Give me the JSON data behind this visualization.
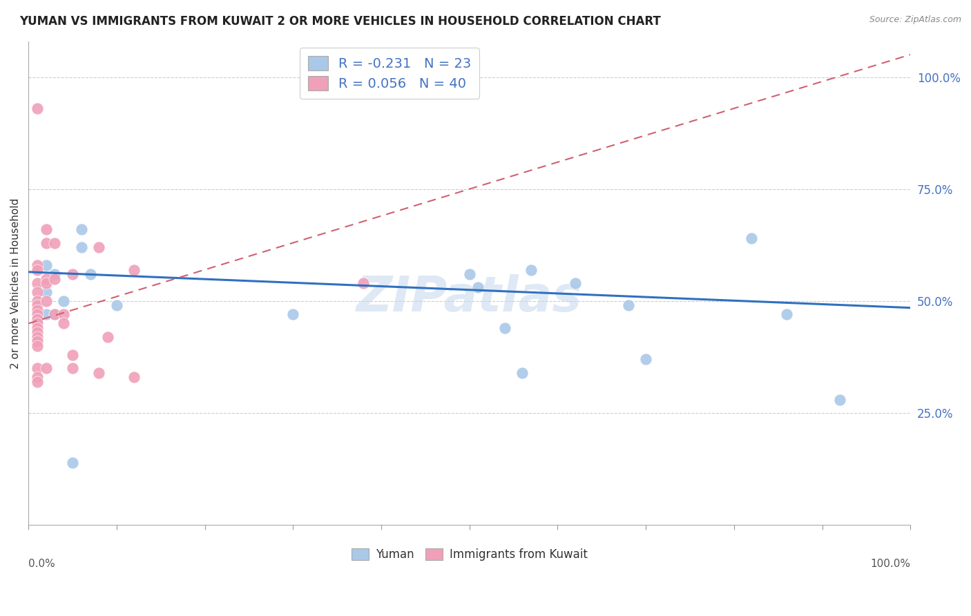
{
  "title": "YUMAN VS IMMIGRANTS FROM KUWAIT 2 OR MORE VEHICLES IN HOUSEHOLD CORRELATION CHART",
  "source": "Source: ZipAtlas.com",
  "ylabel": "2 or more Vehicles in Household",
  "blue_scatter_x": [
    0.02,
    0.03,
    0.02,
    0.04,
    0.02,
    0.03,
    0.06,
    0.06,
    0.07,
    0.1,
    0.3,
    0.5,
    0.51,
    0.54,
    0.56,
    0.57,
    0.62,
    0.68,
    0.7,
    0.82,
    0.86,
    0.92,
    0.05
  ],
  "blue_scatter_y": [
    0.58,
    0.56,
    0.52,
    0.5,
    0.47,
    0.47,
    0.66,
    0.62,
    0.56,
    0.49,
    0.47,
    0.56,
    0.53,
    0.44,
    0.34,
    0.57,
    0.54,
    0.49,
    0.37,
    0.64,
    0.47,
    0.28,
    0.14
  ],
  "pink_scatter_x": [
    0.01,
    0.01,
    0.01,
    0.01,
    0.01,
    0.01,
    0.01,
    0.01,
    0.01,
    0.01,
    0.01,
    0.01,
    0.01,
    0.01,
    0.01,
    0.01,
    0.01,
    0.01,
    0.01,
    0.01,
    0.02,
    0.02,
    0.02,
    0.02,
    0.02,
    0.02,
    0.03,
    0.03,
    0.03,
    0.04,
    0.04,
    0.05,
    0.05,
    0.05,
    0.08,
    0.08,
    0.09,
    0.12,
    0.12,
    0.38
  ],
  "pink_scatter_y": [
    0.93,
    0.58,
    0.57,
    0.54,
    0.52,
    0.5,
    0.49,
    0.48,
    0.47,
    0.46,
    0.46,
    0.45,
    0.44,
    0.43,
    0.42,
    0.41,
    0.4,
    0.35,
    0.33,
    0.32,
    0.66,
    0.63,
    0.55,
    0.54,
    0.5,
    0.35,
    0.63,
    0.55,
    0.47,
    0.47,
    0.45,
    0.56,
    0.38,
    0.35,
    0.62,
    0.34,
    0.42,
    0.33,
    0.57,
    0.54
  ],
  "blue_line_x": [
    0.0,
    1.0
  ],
  "blue_line_y": [
    0.565,
    0.485
  ],
  "pink_line_x": [
    0.0,
    1.0
  ],
  "pink_line_y": [
    0.45,
    1.05
  ],
  "blue_color": "#aac8e8",
  "pink_color": "#f0a0b8",
  "blue_line_color": "#3070c0",
  "pink_line_color": "#d06070",
  "background_color": "#ffffff",
  "watermark_text": "ZIPatlas",
  "xlim": [
    0.0,
    1.0
  ],
  "ylim": [
    0.0,
    1.08
  ],
  "ytick_values": [
    0.25,
    0.5,
    0.75,
    1.0
  ],
  "ytick_labels": [
    "25.0%",
    "50.0%",
    "75.0%",
    "100.0%"
  ],
  "legend1_r": "R = -0.231",
  "legend1_n": "N = 23",
  "legend2_r": "R = 0.056",
  "legend2_n": "N = 40",
  "bottom_legend1": "Yuman",
  "bottom_legend2": "Immigrants from Kuwait"
}
